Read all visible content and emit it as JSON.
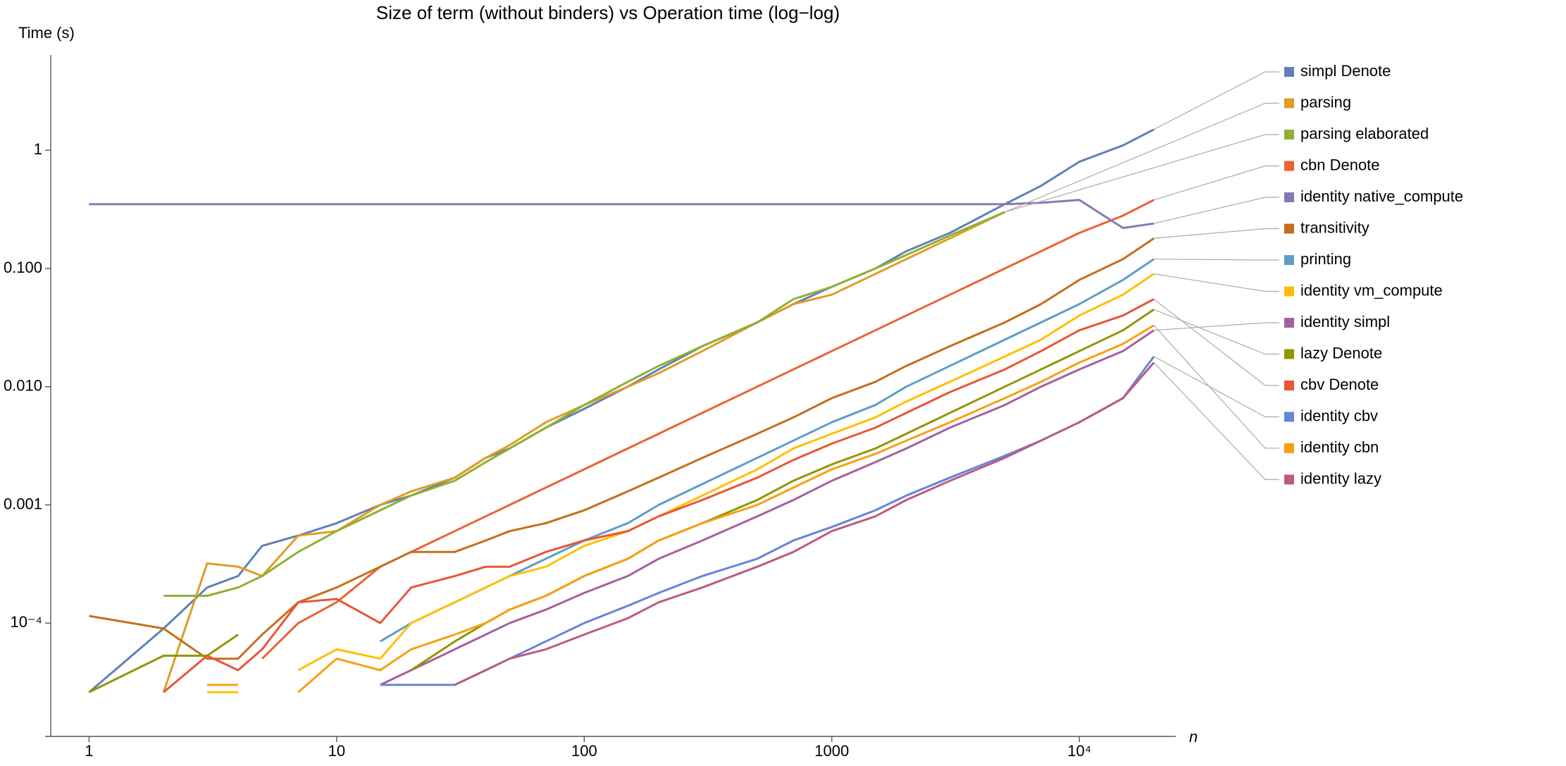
{
  "chart_data": {
    "type": "line",
    "title": "Size of term (without binders) vs Operation time (log−log)",
    "y_label": "Time (s)",
    "x_label": "n",
    "log_x": true,
    "log_y": true,
    "xlim": [
      0.7,
      24500
    ],
    "ylim": [
      1.1e-05,
      6.4
    ],
    "xticks": [
      1,
      10,
      100,
      1000,
      {
        "value": 10000,
        "label": "10⁴"
      }
    ],
    "yticks": [
      {
        "value": 0.0001,
        "label": "10⁻⁴"
      },
      0.001,
      {
        "value": 0.01,
        "label": "0.010"
      },
      {
        "value": 0.1,
        "label": "0.100"
      },
      1
    ],
    "x": [
      1,
      2,
      3,
      4,
      5,
      7,
      10,
      15,
      20,
      30,
      40,
      50,
      70,
      100,
      150,
      200,
      300,
      500,
      700,
      1000,
      1500,
      2000,
      3000,
      5000,
      7000,
      10000,
      15000,
      20000
    ],
    "series": [
      {
        "name": "simpl Denote",
        "color": "#5e81b5",
        "values": [
          2.6e-05,
          9e-05,
          0.0002,
          0.00025,
          0.00045,
          0.00055,
          0.0007,
          0.001,
          0.0012,
          0.0017,
          0.0025,
          0.003,
          0.0045,
          0.0065,
          0.01,
          0.014,
          0.022,
          0.035,
          0.05,
          0.07,
          0.1,
          0.14,
          0.2,
          0.35,
          0.5,
          0.8,
          1.1,
          1.5
        ]
      },
      {
        "name": "parsing",
        "color": "#e19c24",
        "values": [
          null,
          2.6e-05,
          0.00032,
          0.0003,
          0.00025,
          0.00055,
          0.0006,
          0.001,
          0.0013,
          0.0017,
          0.0025,
          0.0032,
          0.005,
          0.007,
          0.01,
          0.013,
          0.02,
          0.035,
          0.05,
          0.06,
          0.09,
          0.12,
          0.18,
          0.3,
          null,
          null,
          null,
          null
        ]
      },
      {
        "name": "parsing elaborated",
        "color": "#8fb032",
        "values": [
          null,
          0.00017,
          0.00017,
          0.0002,
          0.00025,
          0.0004,
          0.0006,
          0.0009,
          0.0012,
          0.0016,
          0.0023,
          0.003,
          0.0045,
          0.007,
          0.011,
          0.015,
          0.022,
          0.035,
          0.055,
          0.07,
          0.1,
          0.13,
          0.19,
          0.3,
          null,
          null,
          null,
          null
        ]
      },
      {
        "name": "cbn Denote",
        "color": "#eb6235",
        "values": [
          null,
          null,
          null,
          null,
          5e-05,
          0.0001,
          0.00015,
          0.0003,
          0.0004,
          0.0006,
          0.0008,
          0.001,
          0.0014,
          0.002,
          0.003,
          0.004,
          0.006,
          0.01,
          0.014,
          0.02,
          0.03,
          0.04,
          0.06,
          0.1,
          0.14,
          0.2,
          0.28,
          0.38
        ]
      },
      {
        "name": "identity native_compute",
        "color": "#8778b3",
        "values": [
          0.35,
          0.35,
          0.35,
          0.35,
          0.35,
          0.35,
          0.35,
          0.35,
          0.35,
          0.35,
          0.35,
          0.35,
          0.35,
          0.35,
          0.35,
          0.35,
          0.35,
          0.35,
          0.35,
          0.35,
          0.35,
          0.35,
          0.35,
          0.35,
          0.36,
          0.38,
          0.22,
          0.24
        ]
      },
      {
        "name": "transitivity",
        "color": "#c56e1a",
        "values": [
          0.000115,
          9e-05,
          5e-05,
          5e-05,
          8e-05,
          0.00015,
          0.0002,
          0.0003,
          0.0004,
          0.0004,
          0.0005,
          0.0006,
          0.0007,
          0.0009,
          0.0013,
          0.0017,
          0.0025,
          0.004,
          0.0055,
          0.008,
          0.011,
          0.015,
          0.022,
          0.035,
          0.05,
          0.08,
          0.12,
          0.18
        ]
      },
      {
        "name": "printing",
        "color": "#5d9ec7",
        "values": [
          null,
          null,
          null,
          null,
          null,
          null,
          null,
          7e-05,
          0.0001,
          0.00015,
          0.0002,
          0.00025,
          0.00035,
          0.0005,
          0.0007,
          0.001,
          0.0015,
          0.0025,
          0.0035,
          0.005,
          0.007,
          0.01,
          0.015,
          0.025,
          0.035,
          0.05,
          0.08,
          0.12
        ]
      },
      {
        "name": "identity vm_compute",
        "color": "#ffbf00",
        "values": [
          null,
          null,
          2.6e-05,
          2.6e-05,
          null,
          4e-05,
          6e-05,
          5e-05,
          0.0001,
          0.00015,
          0.0002,
          0.00025,
          0.0003,
          0.00045,
          0.0006,
          0.0008,
          0.0012,
          0.002,
          0.003,
          0.004,
          0.0055,
          0.0075,
          0.011,
          0.018,
          0.025,
          0.04,
          0.06,
          0.09
        ]
      },
      {
        "name": "identity simpl",
        "color": "#a5609d",
        "values": [
          null,
          null,
          null,
          null,
          null,
          null,
          null,
          3e-05,
          4e-05,
          6e-05,
          8e-05,
          0.0001,
          0.00013,
          0.00018,
          0.00025,
          0.00035,
          0.0005,
          0.0008,
          0.0011,
          0.0016,
          0.0023,
          0.003,
          0.0045,
          0.007,
          0.01,
          0.014,
          0.02,
          0.03
        ]
      },
      {
        "name": "lazy Denote",
        "color": "#929600",
        "values": [
          2.6e-05,
          5.3e-05,
          5.3e-05,
          8e-05,
          null,
          null,
          null,
          null,
          4e-05,
          7e-05,
          0.0001,
          0.00013,
          0.00017,
          0.00025,
          0.00035,
          0.0005,
          0.0007,
          0.0011,
          0.0016,
          0.0022,
          0.003,
          0.004,
          0.006,
          0.01,
          0.014,
          0.02,
          0.03,
          0.045
        ]
      },
      {
        "name": "cbv Denote",
        "color": "#e95536",
        "values": [
          null,
          2.6e-05,
          5.3e-05,
          4e-05,
          6e-05,
          0.00015,
          0.00016,
          0.0001,
          0.0002,
          0.00025,
          0.0003,
          0.0003,
          0.0004,
          0.0005,
          0.0006,
          0.0008,
          0.0011,
          0.0017,
          0.0024,
          0.0033,
          0.0045,
          0.006,
          0.009,
          0.014,
          0.02,
          0.03,
          0.04,
          0.055
        ]
      },
      {
        "name": "identity cbv",
        "color": "#6685d9",
        "values": [
          null,
          null,
          null,
          null,
          null,
          null,
          null,
          3e-05,
          3e-05,
          3e-05,
          4e-05,
          5e-05,
          7e-05,
          0.0001,
          0.00014,
          0.00018,
          0.00025,
          0.00035,
          0.0005,
          0.00065,
          0.0009,
          0.0012,
          0.0017,
          0.0026,
          0.0035,
          0.005,
          0.008,
          0.018
        ]
      },
      {
        "name": "identity cbn",
        "color": "#f89f13",
        "values": [
          null,
          null,
          3e-05,
          3e-05,
          null,
          2.6e-05,
          5e-05,
          4e-05,
          6e-05,
          8e-05,
          0.0001,
          0.00013,
          0.00017,
          0.00025,
          0.00035,
          0.0005,
          0.0007,
          0.001,
          0.0014,
          0.002,
          0.0027,
          0.0035,
          0.005,
          0.008,
          0.011,
          0.016,
          0.023,
          0.033
        ]
      },
      {
        "name": "identity lazy",
        "color": "#bc5b80",
        "values": [
          null,
          null,
          null,
          null,
          null,
          null,
          null,
          null,
          null,
          3e-05,
          4e-05,
          5e-05,
          6e-05,
          8e-05,
          0.00011,
          0.00015,
          0.0002,
          0.0003,
          0.0004,
          0.0006,
          0.0008,
          0.0011,
          0.0016,
          0.0025,
          0.0035,
          0.005,
          0.008,
          0.016
        ]
      }
    ]
  }
}
